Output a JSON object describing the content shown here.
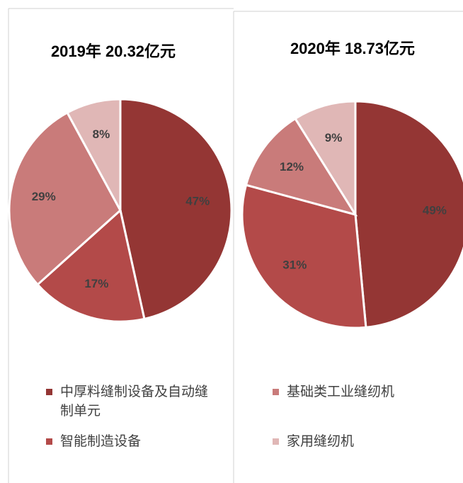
{
  "chart_data": [
    {
      "type": "pie",
      "title": "2019年 20.32亿元",
      "values": [
        47,
        17,
        29,
        8
      ],
      "value_labels": [
        "47%",
        "17%",
        "29%",
        "8%"
      ]
    },
    {
      "type": "pie",
      "title": "2020年 18.73亿元",
      "values": [
        49,
        31,
        12,
        9
      ],
      "value_labels": [
        "49%",
        "31%",
        "12%",
        "9%"
      ]
    }
  ],
  "legend": {
    "items": [
      {
        "name": "中厚料缝制设备及自动缝制单元",
        "color": "#943634"
      },
      {
        "name": "智能制造设备",
        "color": "#b34a49"
      },
      {
        "name": "基础类工业缝纫机",
        "color": "#c97b7a"
      },
      {
        "name": "家用缝纫机",
        "color": "#e0b7b6"
      }
    ]
  }
}
